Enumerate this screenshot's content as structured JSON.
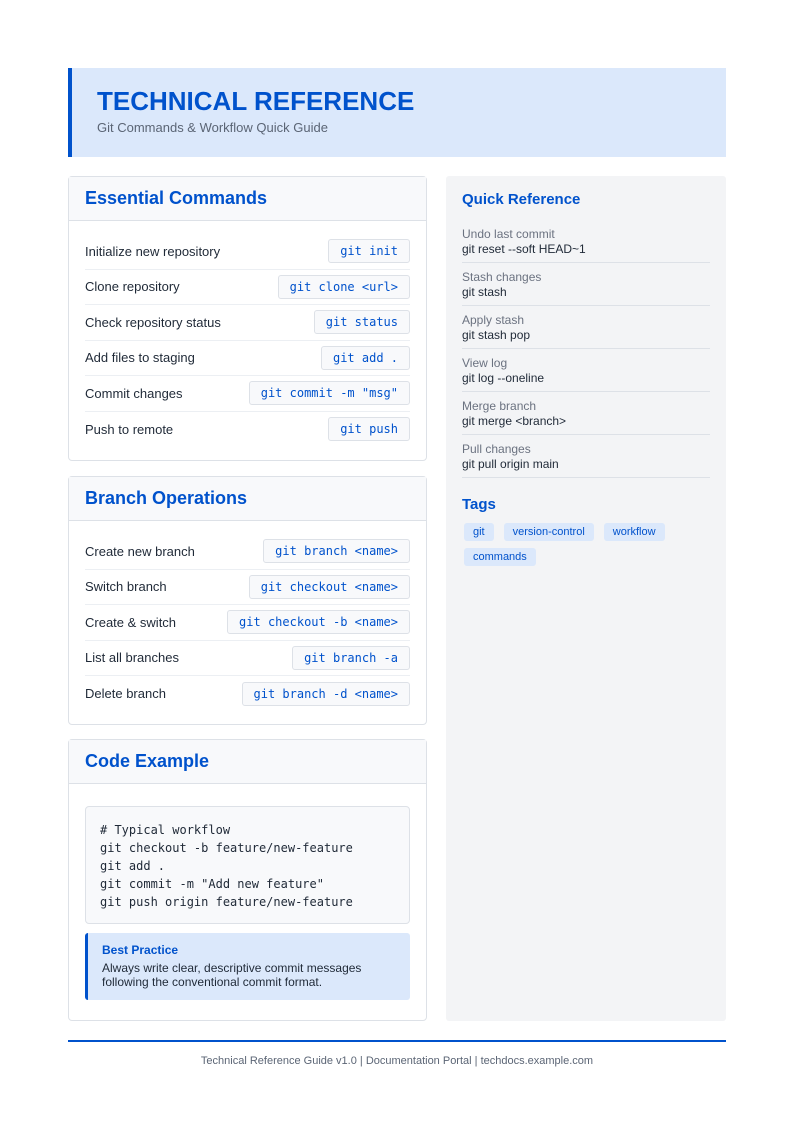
{
  "header": {
    "title": "TECHNICAL REFERENCE",
    "subtitle": "Git Commands & Workflow Quick Guide"
  },
  "essential": {
    "title": "Essential Commands",
    "rows": [
      {
        "label": "Initialize new repository",
        "cmd": "git init"
      },
      {
        "label": "Clone repository",
        "cmd": "git clone <url>"
      },
      {
        "label": "Check repository status",
        "cmd": "git status"
      },
      {
        "label": "Add files to staging",
        "cmd": "git add ."
      },
      {
        "label": "Commit changes",
        "cmd": "git commit -m \"msg\""
      },
      {
        "label": "Push to remote",
        "cmd": "git push"
      }
    ]
  },
  "branch": {
    "title": "Branch Operations",
    "rows": [
      {
        "label": "Create new branch",
        "cmd": "git branch <name>"
      },
      {
        "label": "Switch branch",
        "cmd": "git checkout <name>"
      },
      {
        "label": "Create & switch",
        "cmd": "git checkout -b <name>"
      },
      {
        "label": "List all branches",
        "cmd": "git branch -a"
      },
      {
        "label": "Delete branch",
        "cmd": "git branch -d <name>"
      }
    ]
  },
  "example": {
    "title": "Code Example",
    "code": "# Typical workflow\ngit checkout -b feature/new-feature\ngit add .\ngit commit -m \"Add new feature\"\ngit push origin feature/new-feature",
    "note_title": "Best Practice",
    "note_body": "Always write clear, descriptive commit messages following the conventional commit format."
  },
  "quick": {
    "title": "Quick Reference",
    "items": [
      {
        "label": "Undo last commit",
        "value": "git reset --soft HEAD~1"
      },
      {
        "label": "Stash changes",
        "value": "git stash"
      },
      {
        "label": "Apply stash",
        "value": "git stash pop"
      },
      {
        "label": "View log",
        "value": "git log --oneline"
      },
      {
        "label": "Merge branch",
        "value": "git merge <branch>"
      },
      {
        "label": "Pull changes",
        "value": "git pull origin main"
      }
    ]
  },
  "tags": {
    "title": "Tags",
    "items": [
      "git",
      "version-control",
      "workflow",
      "commands"
    ]
  },
  "footer": "Technical Reference Guide v1.0 | Documentation Portal | techdocs.example.com",
  "colors": {
    "accent": "#0052cc",
    "accent_bg": "#dbe8fb"
  }
}
